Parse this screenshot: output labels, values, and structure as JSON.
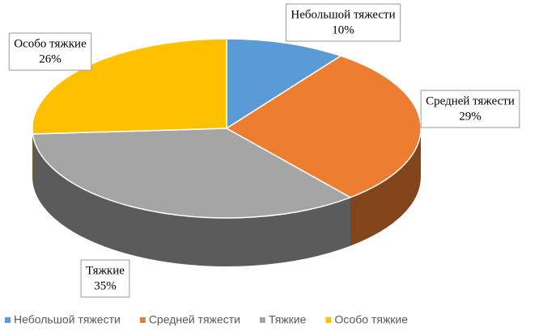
{
  "chart_data": {
    "type": "pie3d",
    "categories": [
      "Небольшой тяжести",
      "Средней тяжести",
      "Тяжкие",
      "Особо тяжкие"
    ],
    "values": [
      10,
      29,
      35,
      26
    ],
    "value_labels": [
      "10%",
      "29%",
      "35%",
      "26%"
    ],
    "colors": [
      "#5b9bd5",
      "#ed7d31",
      "#a5a5a5",
      "#ffc000"
    ],
    "legend": "bottom"
  }
}
